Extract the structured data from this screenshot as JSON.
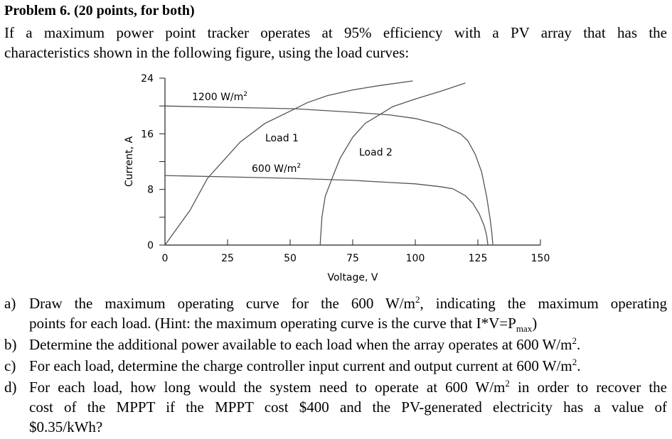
{
  "problem": {
    "title": "Problem 6. (20 points, for both)",
    "intro_line1": "If a maximum power point tracker operates at 95% efficiency with a PV array that has the",
    "intro_line2": "characteristics shown in the following figure, using the load curves:"
  },
  "chart_data": {
    "type": "line",
    "xlabel": "Voltage, V",
    "ylabel": "Current, A",
    "xlim": [
      0,
      150
    ],
    "ylim": [
      0,
      24
    ],
    "x_ticks": [
      0,
      25,
      50,
      75,
      100,
      125,
      150
    ],
    "x_tick_labels": [
      "0",
      "25",
      "50",
      "75",
      "100",
      "125",
      "150"
    ],
    "y_ticks": [
      0,
      4,
      8,
      12,
      16,
      20,
      24
    ],
    "y_tick_labels": [
      "0",
      "8",
      "16",
      "24"
    ],
    "y_labeled_ticks": [
      0,
      8,
      16,
      24
    ],
    "grid": false,
    "line_color": "#555555",
    "series": [
      {
        "name": "1200 W/m",
        "superscript": "2",
        "points": [
          [
            0,
            20
          ],
          [
            25,
            19.8
          ],
          [
            52,
            19.6
          ],
          [
            75,
            19.1
          ],
          [
            90,
            18.7
          ],
          [
            100,
            18.2
          ],
          [
            110,
            17.3
          ],
          [
            118,
            16
          ],
          [
            121,
            15
          ],
          [
            124,
            13
          ],
          [
            126.5,
            10.5
          ],
          [
            128.5,
            7
          ],
          [
            129.8,
            4
          ],
          [
            130.5,
            2
          ],
          [
            131,
            0
          ]
        ]
      },
      {
        "name": "600 W/m",
        "superscript": "2",
        "points": [
          [
            0,
            10
          ],
          [
            25,
            9.8
          ],
          [
            50,
            9.6
          ],
          [
            75,
            9.3
          ],
          [
            90,
            9
          ],
          [
            100,
            8.8
          ],
          [
            110,
            8.4
          ],
          [
            115,
            8.1
          ],
          [
            120,
            7.1
          ],
          [
            123,
            6
          ],
          [
            125.5,
            4.5
          ],
          [
            127.5,
            2.8
          ],
          [
            128.5,
            1.4
          ],
          [
            129,
            0
          ]
        ]
      },
      {
        "name": "Load 1",
        "points": [
          [
            0,
            0
          ],
          [
            10,
            5
          ],
          [
            17,
            9.6
          ],
          [
            25,
            12.8
          ],
          [
            30,
            14.8
          ],
          [
            40,
            17.5
          ],
          [
            52,
            19.6
          ],
          [
            57,
            20.5
          ],
          [
            65,
            21.5
          ],
          [
            75,
            22.3
          ],
          [
            85,
            22.9
          ],
          [
            99,
            23.6
          ]
        ]
      },
      {
        "name": "Load 2",
        "points": [
          [
            62,
            0
          ],
          [
            62.7,
            4
          ],
          [
            64,
            7
          ],
          [
            67,
            9.8
          ],
          [
            70,
            12.5
          ],
          [
            75,
            15.5
          ],
          [
            80,
            17.5
          ],
          [
            86,
            18.8
          ],
          [
            91,
            19.9
          ],
          [
            100,
            21
          ],
          [
            110,
            22.1
          ],
          [
            120,
            23.3
          ]
        ]
      }
    ]
  },
  "questions": [
    {
      "label": "a)",
      "parts": [
        "Draw the maximum operating curve for the 600 W/m",
        "2",
        ", indicating the maximum operating",
        "points for each load. (Hint: the maximum operating curve is the curve that I*V=P",
        "max",
        ")"
      ]
    },
    {
      "label": "b)",
      "parts": [
        "Determine the additional power available to each load when the array operates at 600 W/m",
        "2",
        "."
      ]
    },
    {
      "label": "c)",
      "parts": [
        "For each load, determine the charge controller input current and output current at 600 W/m",
        "2",
        "."
      ]
    },
    {
      "label": "d)",
      "parts": [
        "For each load, how long would the system need to operate at 600 W/m",
        "2",
        " in order to recover the",
        "cost of the MPPT if the MPPT cost $400 and the PV-generated electricity has a value of",
        "$0.35/kWh?"
      ]
    }
  ]
}
